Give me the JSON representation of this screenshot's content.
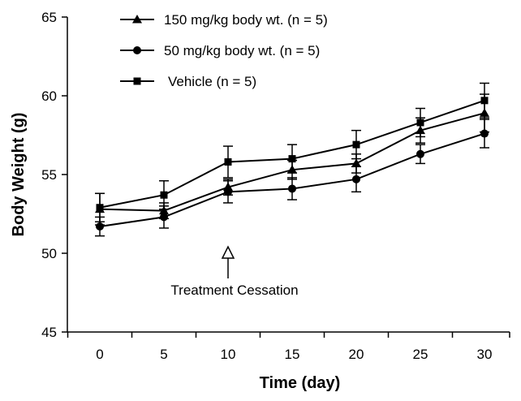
{
  "chart_data": {
    "type": "line",
    "title": "",
    "xlabel": "Time (day)",
    "ylabel": "Body Weight (g)",
    "xlim": [
      -5,
      32
    ],
    "ylim": [
      45,
      65
    ],
    "x_ticks": [
      0,
      5,
      10,
      15,
      20,
      25,
      30
    ],
    "x_tick_labels": [
      "0",
      "5",
      "10",
      "15",
      "20",
      "25",
      "30"
    ],
    "y_ticks": [
      45,
      50,
      55,
      60,
      65
    ],
    "y_tick_labels": [
      "45",
      "50",
      "55",
      "60",
      "65"
    ],
    "grid": false,
    "legend_position": "top-left",
    "x": [
      0,
      5,
      10,
      15,
      20,
      25,
      30
    ],
    "series": [
      {
        "name": "150 mg/kg body wt. (n = 5)",
        "marker": "triangle",
        "values": [
          52.8,
          52.7,
          54.2,
          55.3,
          55.7,
          57.8,
          58.9
        ],
        "error": [
          1.0,
          0.5,
          0.5,
          0.6,
          0.6,
          0.8,
          1.2
        ]
      },
      {
        "name": "50 mg/kg body wt. (n = 5)",
        "marker": "circle",
        "values": [
          51.7,
          52.3,
          53.9,
          54.1,
          54.7,
          56.3,
          57.6
        ],
        "error": [
          0.6,
          0.7,
          0.7,
          0.7,
          0.8,
          0.6,
          0.9
        ]
      },
      {
        "name": "Vehicle (n = 5)",
        "marker": "square",
        "values": [
          52.9,
          53.7,
          55.8,
          56.0,
          56.9,
          58.3,
          59.7
        ],
        "error": [
          0.9,
          0.9,
          1.0,
          0.9,
          0.9,
          0.9,
          1.1
        ]
      }
    ],
    "annotations": [
      {
        "text": "Treatment Cessation",
        "x": 10,
        "arrow": "up"
      }
    ],
    "colors": {
      "line": "#000000",
      "background": "#ffffff"
    }
  }
}
